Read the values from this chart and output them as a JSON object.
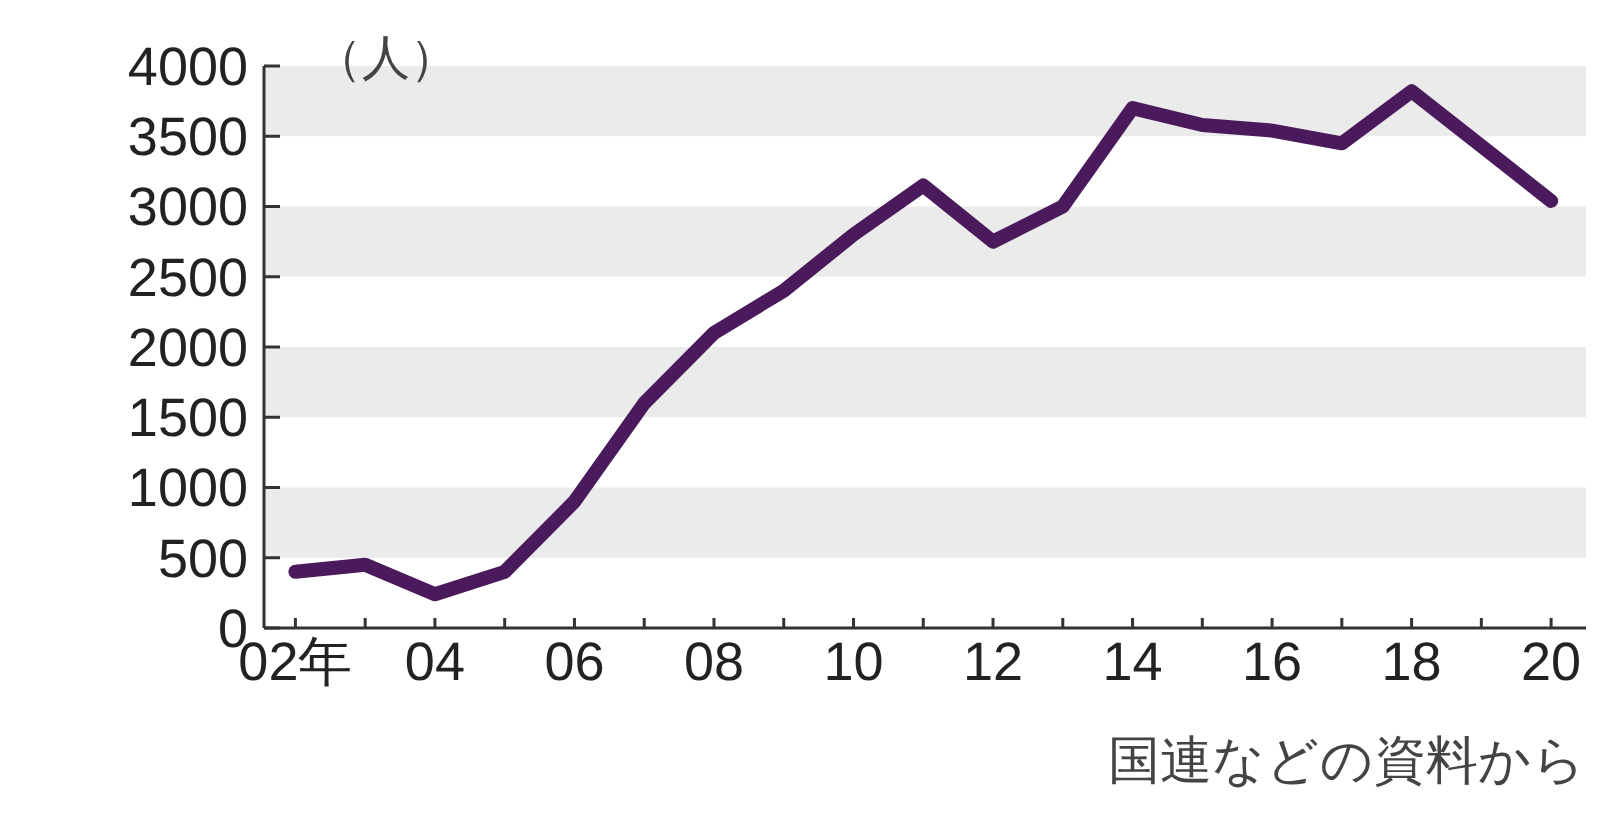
{
  "chart_data": {
    "type": "line",
    "ylabel": "（人）",
    "annotations": [
      "国連などの資料から"
    ],
    "categories": [
      "02年",
      null,
      "04",
      null,
      "06",
      null,
      "08",
      null,
      "10",
      null,
      "12",
      null,
      "14",
      null,
      "16",
      null,
      "18",
      null,
      "20"
    ],
    "series": [
      {
        "color": "#4a1a5c",
        "values": [
          400,
          450,
          240,
          400,
          900,
          1600,
          2100,
          2400,
          2800,
          3150,
          2750,
          3000,
          3700,
          3580,
          3540,
          3450,
          3820,
          3430,
          3040
        ]
      }
    ],
    "ylim": [
      0,
      4000
    ],
    "yticks": [
      0,
      500,
      1000,
      1500,
      2000,
      2500,
      3000,
      3500,
      4000
    ],
    "bands": [
      {
        "axis": "y",
        "from": 500,
        "to": 1000,
        "color": "#ebebeb"
      },
      {
        "axis": "y",
        "from": 1500,
        "to": 2000,
        "color": "#ebebeb"
      },
      {
        "axis": "y",
        "from": 2500,
        "to": 3000,
        "color": "#ebebeb"
      },
      {
        "axis": "y",
        "from": 3500,
        "to": 4000,
        "color": "#ebebeb"
      }
    ],
    "grid": false,
    "marker": "none",
    "line_style": "solid"
  }
}
